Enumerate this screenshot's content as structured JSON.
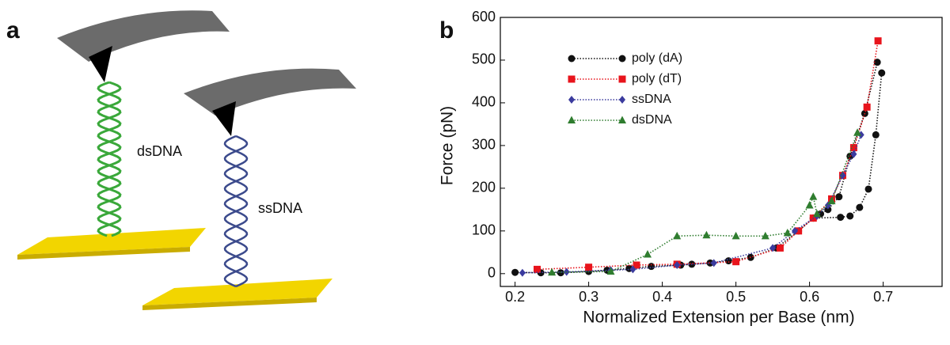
{
  "panel_labels": [
    "a",
    "b"
  ],
  "diagram": {
    "labels": [
      "dsDNA",
      "ssDNA"
    ]
  },
  "chart_data": {
    "type": "line",
    "x_label": "Normalized Extension per Base (nm)",
    "y_label": "Force (pN)",
    "xlim": [
      0.18,
      0.78
    ],
    "ylim": [
      -30,
      600
    ],
    "xticks": [
      0.2,
      0.3,
      0.4,
      0.5,
      0.6,
      0.7
    ],
    "yticks": [
      0,
      100,
      200,
      300,
      400,
      500,
      600
    ],
    "legend": "upper left",
    "series": [
      {
        "name": "poly (dA)",
        "color": "#111111",
        "marker": "circle",
        "x": [
          0.2,
          0.235,
          0.262,
          0.3,
          0.325,
          0.355,
          0.385,
          0.425,
          0.44,
          0.465,
          0.49,
          0.52,
          0.555,
          0.585,
          0.605,
          0.615,
          0.625,
          0.64,
          0.655,
          0.675,
          0.692,
          null,
          0.605,
          0.642,
          0.655,
          0.668,
          0.68,
          0.69,
          0.698
        ],
        "values": [
          3,
          2,
          2,
          5,
          8,
          12,
          17,
          20,
          22,
          25,
          30,
          38,
          60,
          100,
          130,
          140,
          150,
          180,
          275,
          375,
          495,
          null,
          130,
          132,
          135,
          155,
          198,
          325,
          470
        ]
      },
      {
        "name": "poly (dT)",
        "color": "#e8141c",
        "marker": "square",
        "x": [
          0.23,
          0.3,
          0.365,
          0.42,
          0.5,
          0.56,
          0.585,
          0.605,
          0.63,
          0.645,
          0.66,
          0.678,
          0.693
        ],
        "values": [
          10,
          15,
          20,
          22,
          28,
          60,
          100,
          130,
          175,
          230,
          295,
          390,
          545
        ]
      },
      {
        "name": "ssDNA",
        "color": "#3b3b9e",
        "marker": "diamond",
        "x": [
          0.21,
          0.27,
          0.33,
          0.36,
          0.42,
          0.47,
          0.55,
          0.58,
          0.61,
          0.625,
          0.645,
          0.66,
          0.67
        ],
        "values": [
          2,
          4,
          8,
          10,
          20,
          25,
          60,
          100,
          135,
          160,
          230,
          280,
          325
        ]
      },
      {
        "name": "dsDNA",
        "color": "#2f7d2f",
        "marker": "triangle",
        "x": [
          0.25,
          0.33,
          0.38,
          0.42,
          0.46,
          0.5,
          0.54,
          0.57,
          0.6,
          0.605,
          0.61,
          0.63,
          0.665
        ],
        "values": [
          3,
          5,
          45,
          88,
          90,
          88,
          88,
          95,
          160,
          180,
          140,
          170,
          330
        ]
      }
    ]
  }
}
